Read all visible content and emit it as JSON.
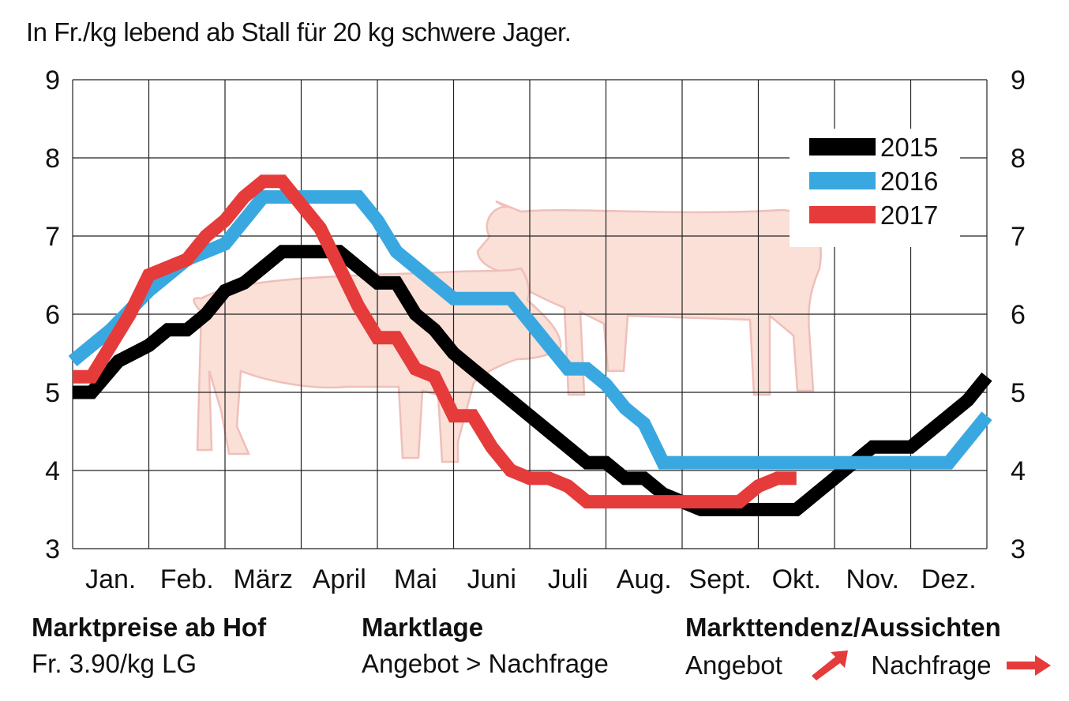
{
  "subtitle": "In Fr./kg lebend ab Stall für 20 kg schwere Jager.",
  "footer": {
    "prices_heading": "Marktpreise ab Hof",
    "prices_value": "Fr. 3.90/kg LG",
    "situation_heading": "Marktlage",
    "situation_value": "Angebot > Nachfrage",
    "trend_heading": "Markttendenz/Aussichten",
    "trend_supply_label": "Angebot",
    "trend_demand_label": "Nachfrage",
    "trend_supply_direction": "up",
    "trend_demand_direction": "flat",
    "arrow_color": "#e63b3b"
  },
  "chart_data": {
    "type": "line",
    "title": "",
    "xlabel": "",
    "ylabel": "",
    "ylim": [
      3,
      9
    ],
    "yticks": [
      "3",
      "4",
      "5",
      "6",
      "7",
      "8",
      "9"
    ],
    "categories": [
      "Jan.",
      "Feb.",
      "März",
      "April",
      "Mai",
      "Juni",
      "Juli",
      "Aug.",
      "Sept.",
      "Okt.",
      "Nov.",
      "Dez."
    ],
    "grid": true,
    "legend_position": "top-right",
    "series": [
      {
        "name": "2015",
        "color": "#000000",
        "x": [
          0,
          0.25,
          0.6,
          1.0,
          1.25,
          1.5,
          1.75,
          2.0,
          2.25,
          2.5,
          2.75,
          3.0,
          3.25,
          3.5,
          3.75,
          4.0,
          4.25,
          4.5,
          4.75,
          5.0,
          5.25,
          5.5,
          5.75,
          6.0,
          6.25,
          6.5,
          6.75,
          7.0,
          7.25,
          7.5,
          7.75,
          8.0,
          8.25,
          8.5,
          8.75,
          9.0,
          9.25,
          9.5,
          9.75,
          10.0,
          10.25,
          10.5,
          10.75,
          11.0,
          11.25,
          11.5,
          11.75,
          12.0
        ],
        "values": [
          5.0,
          5.0,
          5.4,
          5.6,
          5.8,
          5.8,
          6.0,
          6.3,
          6.4,
          6.6,
          6.8,
          6.8,
          6.8,
          6.8,
          6.6,
          6.4,
          6.4,
          6.0,
          5.8,
          5.5,
          5.3,
          5.1,
          4.9,
          4.7,
          4.5,
          4.3,
          4.1,
          4.1,
          3.9,
          3.9,
          3.7,
          3.6,
          3.5,
          3.5,
          3.5,
          3.5,
          3.5,
          3.5,
          3.7,
          3.9,
          4.1,
          4.3,
          4.3,
          4.3,
          4.5,
          4.7,
          4.9,
          5.2
        ]
      },
      {
        "name": "2016",
        "color": "#3aa8e0",
        "x": [
          0,
          0.5,
          1.0,
          1.5,
          2.0,
          2.5,
          3.0,
          3.25,
          3.5,
          3.75,
          4.0,
          4.25,
          4.5,
          4.75,
          5.0,
          5.25,
          5.5,
          5.75,
          6.0,
          6.25,
          6.5,
          6.75,
          7.0,
          7.25,
          7.5,
          7.75,
          8.0,
          8.25,
          8.5,
          8.75,
          9.0,
          9.25,
          9.5,
          9.75,
          10.0,
          10.25,
          10.5,
          10.75,
          11.0,
          11.25,
          11.5,
          11.75,
          12.0
        ],
        "values": [
          5.4,
          5.8,
          6.3,
          6.7,
          6.9,
          7.5,
          7.5,
          7.5,
          7.5,
          7.5,
          7.2,
          6.8,
          6.6,
          6.4,
          6.2,
          6.2,
          6.2,
          6.2,
          5.9,
          5.6,
          5.3,
          5.3,
          5.1,
          4.8,
          4.6,
          4.1,
          4.1,
          4.1,
          4.1,
          4.1,
          4.1,
          4.1,
          4.1,
          4.1,
          4.1,
          4.1,
          4.1,
          4.1,
          4.1,
          4.1,
          4.1,
          4.4,
          4.7
        ]
      },
      {
        "name": "2017",
        "color": "#e63b3b",
        "x": [
          0,
          0.25,
          0.5,
          0.75,
          1.0,
          1.25,
          1.5,
          1.75,
          2.0,
          2.25,
          2.5,
          2.75,
          3.0,
          3.25,
          3.5,
          3.75,
          4.0,
          4.25,
          4.5,
          4.75,
          5.0,
          5.25,
          5.5,
          5.75,
          6.0,
          6.25,
          6.5,
          6.75,
          7.0,
          7.25,
          7.5,
          7.75,
          8.0,
          8.25,
          8.5,
          8.75,
          9.0,
          9.25,
          9.5
        ],
        "values": [
          5.2,
          5.2,
          5.6,
          6.0,
          6.5,
          6.6,
          6.7,
          7.0,
          7.2,
          7.5,
          7.7,
          7.7,
          7.4,
          7.1,
          6.6,
          6.1,
          5.7,
          5.7,
          5.3,
          5.2,
          4.7,
          4.7,
          4.3,
          4.0,
          3.9,
          3.9,
          3.8,
          3.6,
          3.6,
          3.6,
          3.6,
          3.6,
          3.6,
          3.6,
          3.6,
          3.6,
          3.8,
          3.9,
          3.9
        ]
      }
    ]
  }
}
